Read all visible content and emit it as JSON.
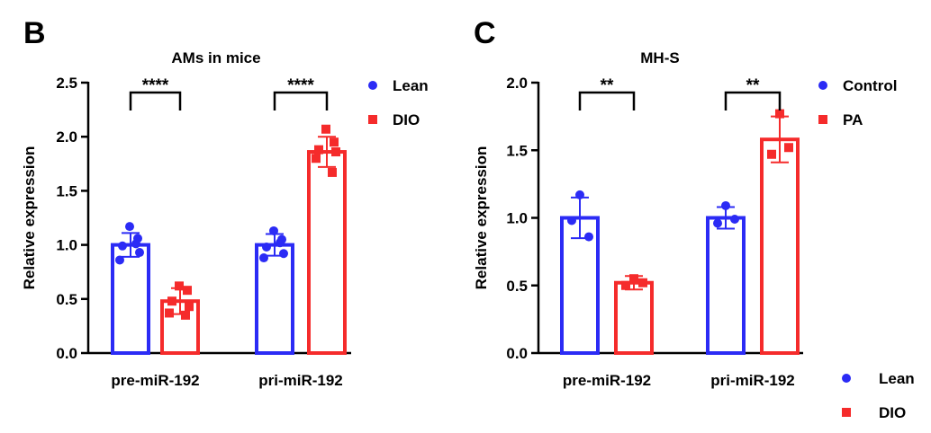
{
  "colors": {
    "blue": "#2b2bf5",
    "red": "#f52b2b",
    "axis": "#000000"
  },
  "chart_data": [
    {
      "panel_label": "B",
      "type": "bar",
      "title": "AMs in mice",
      "ylabel": "Relative expression",
      "ylim": [
        0,
        2.5
      ],
      "yticks": [
        "0.0",
        "0.5",
        "1.0",
        "1.5",
        "2.0",
        "2.5"
      ],
      "categories": [
        "pre-miR-192",
        "pri-miR-192"
      ],
      "legend": {
        "placement": "right",
        "entries": [
          {
            "name": "Lean",
            "marker": "circle",
            "color": "#2b2bf5"
          },
          {
            "name": "DIO",
            "marker": "square",
            "color": "#f52b2b"
          }
        ]
      },
      "series": [
        {
          "name": "Lean",
          "color": "#2b2bf5",
          "marker": "circle",
          "values": [
            1.0,
            1.0
          ],
          "error": [
            0.11,
            0.1
          ],
          "points": [
            [
              1.17,
              1.06,
              0.99,
              0.93,
              0.86,
              1.01
            ],
            [
              1.13,
              1.05,
              0.98,
              0.92,
              0.88,
              1.02
            ]
          ]
        },
        {
          "name": "DIO",
          "color": "#f52b2b",
          "marker": "square",
          "values": [
            0.48,
            1.86
          ],
          "error": [
            0.12,
            0.14
          ],
          "points": [
            [
              0.62,
              0.58,
              0.48,
              0.43,
              0.37,
              0.35
            ],
            [
              2.07,
              1.95,
              1.88,
              1.86,
              1.8,
              1.67
            ]
          ]
        }
      ],
      "annotations": [
        {
          "text": "****",
          "category": 0
        },
        {
          "text": "****",
          "category": 1
        }
      ]
    },
    {
      "panel_label": "C",
      "type": "bar",
      "title": "MH-S",
      "ylabel": "Relative expression",
      "ylim": [
        0,
        2.0
      ],
      "yticks": [
        "0.0",
        "0.5",
        "1.0",
        "1.5",
        "2.0"
      ],
      "categories": [
        "pre-miR-192",
        "pri-miR-192"
      ],
      "legend": {
        "placement": "right",
        "entries": [
          {
            "name": "Control",
            "marker": "circle",
            "color": "#2b2bf5"
          },
          {
            "name": "PA",
            "marker": "square",
            "color": "#f52b2b"
          }
        ]
      },
      "legend2": {
        "placement": "bottom-right",
        "entries": [
          {
            "name": "Lean",
            "marker": "circle",
            "color": "#2b2bf5"
          },
          {
            "name": "DIO",
            "marker": "square",
            "color": "#f52b2b"
          }
        ]
      },
      "series": [
        {
          "name": "Control",
          "color": "#2b2bf5",
          "marker": "circle",
          "values": [
            1.0,
            1.0
          ],
          "error": [
            0.15,
            0.08
          ],
          "points": [
            [
              1.17,
              0.98,
              0.86
            ],
            [
              1.09,
              0.96,
              0.99
            ]
          ]
        },
        {
          "name": "PA",
          "color": "#f52b2b",
          "marker": "square",
          "values": [
            0.52,
            1.58
          ],
          "error": [
            0.05,
            0.17
          ],
          "points": [
            [
              0.55,
              0.5,
              0.52
            ],
            [
              1.77,
              1.47,
              1.52
            ]
          ]
        }
      ],
      "annotations": [
        {
          "text": "**",
          "category": 0
        },
        {
          "text": "**",
          "category": 1
        }
      ]
    }
  ]
}
